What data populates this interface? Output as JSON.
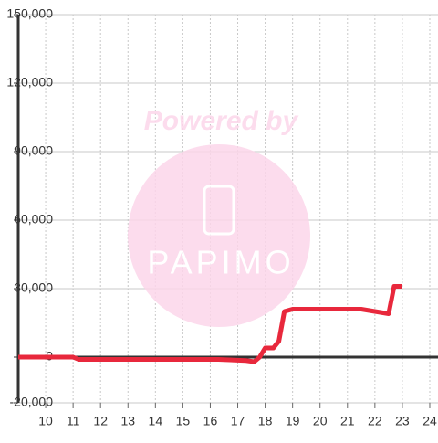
{
  "chart_data": {
    "type": "line",
    "watermark": {
      "text": "Powered by",
      "logo": "PAPIMO"
    },
    "x": [
      9,
      11,
      11.2,
      16.3,
      17.3,
      17.6,
      17.8,
      18,
      18.3,
      18.5,
      18.7,
      19,
      21.5,
      22,
      22.5,
      22.7,
      23
    ],
    "series": [
      {
        "color": "#e8283c",
        "values": [
          0,
          0,
          -1000,
          -1000,
          -1500,
          -2000,
          0,
          4000,
          4000,
          7000,
          20000,
          21000,
          21000,
          20000,
          19000,
          31000,
          31000
        ]
      }
    ],
    "xlim": [
      9,
      24.3
    ],
    "ylim": [
      -20000,
      150000
    ],
    "xticks": [
      10,
      11,
      12,
      13,
      14,
      15,
      16,
      17,
      18,
      19,
      20,
      21,
      22,
      23,
      24
    ],
    "yticks": [
      {
        "value": -20000,
        "label": "-20,000"
      },
      0,
      {
        "value": 30000,
        "label": "30,000"
      },
      {
        "value": 60000,
        "label": "60,000"
      },
      {
        "value": 90000,
        "label": "90,000"
      },
      {
        "value": 120000,
        "label": "120,000"
      },
      {
        "value": 150000,
        "label": "150,000"
      }
    ],
    "grid": true
  }
}
